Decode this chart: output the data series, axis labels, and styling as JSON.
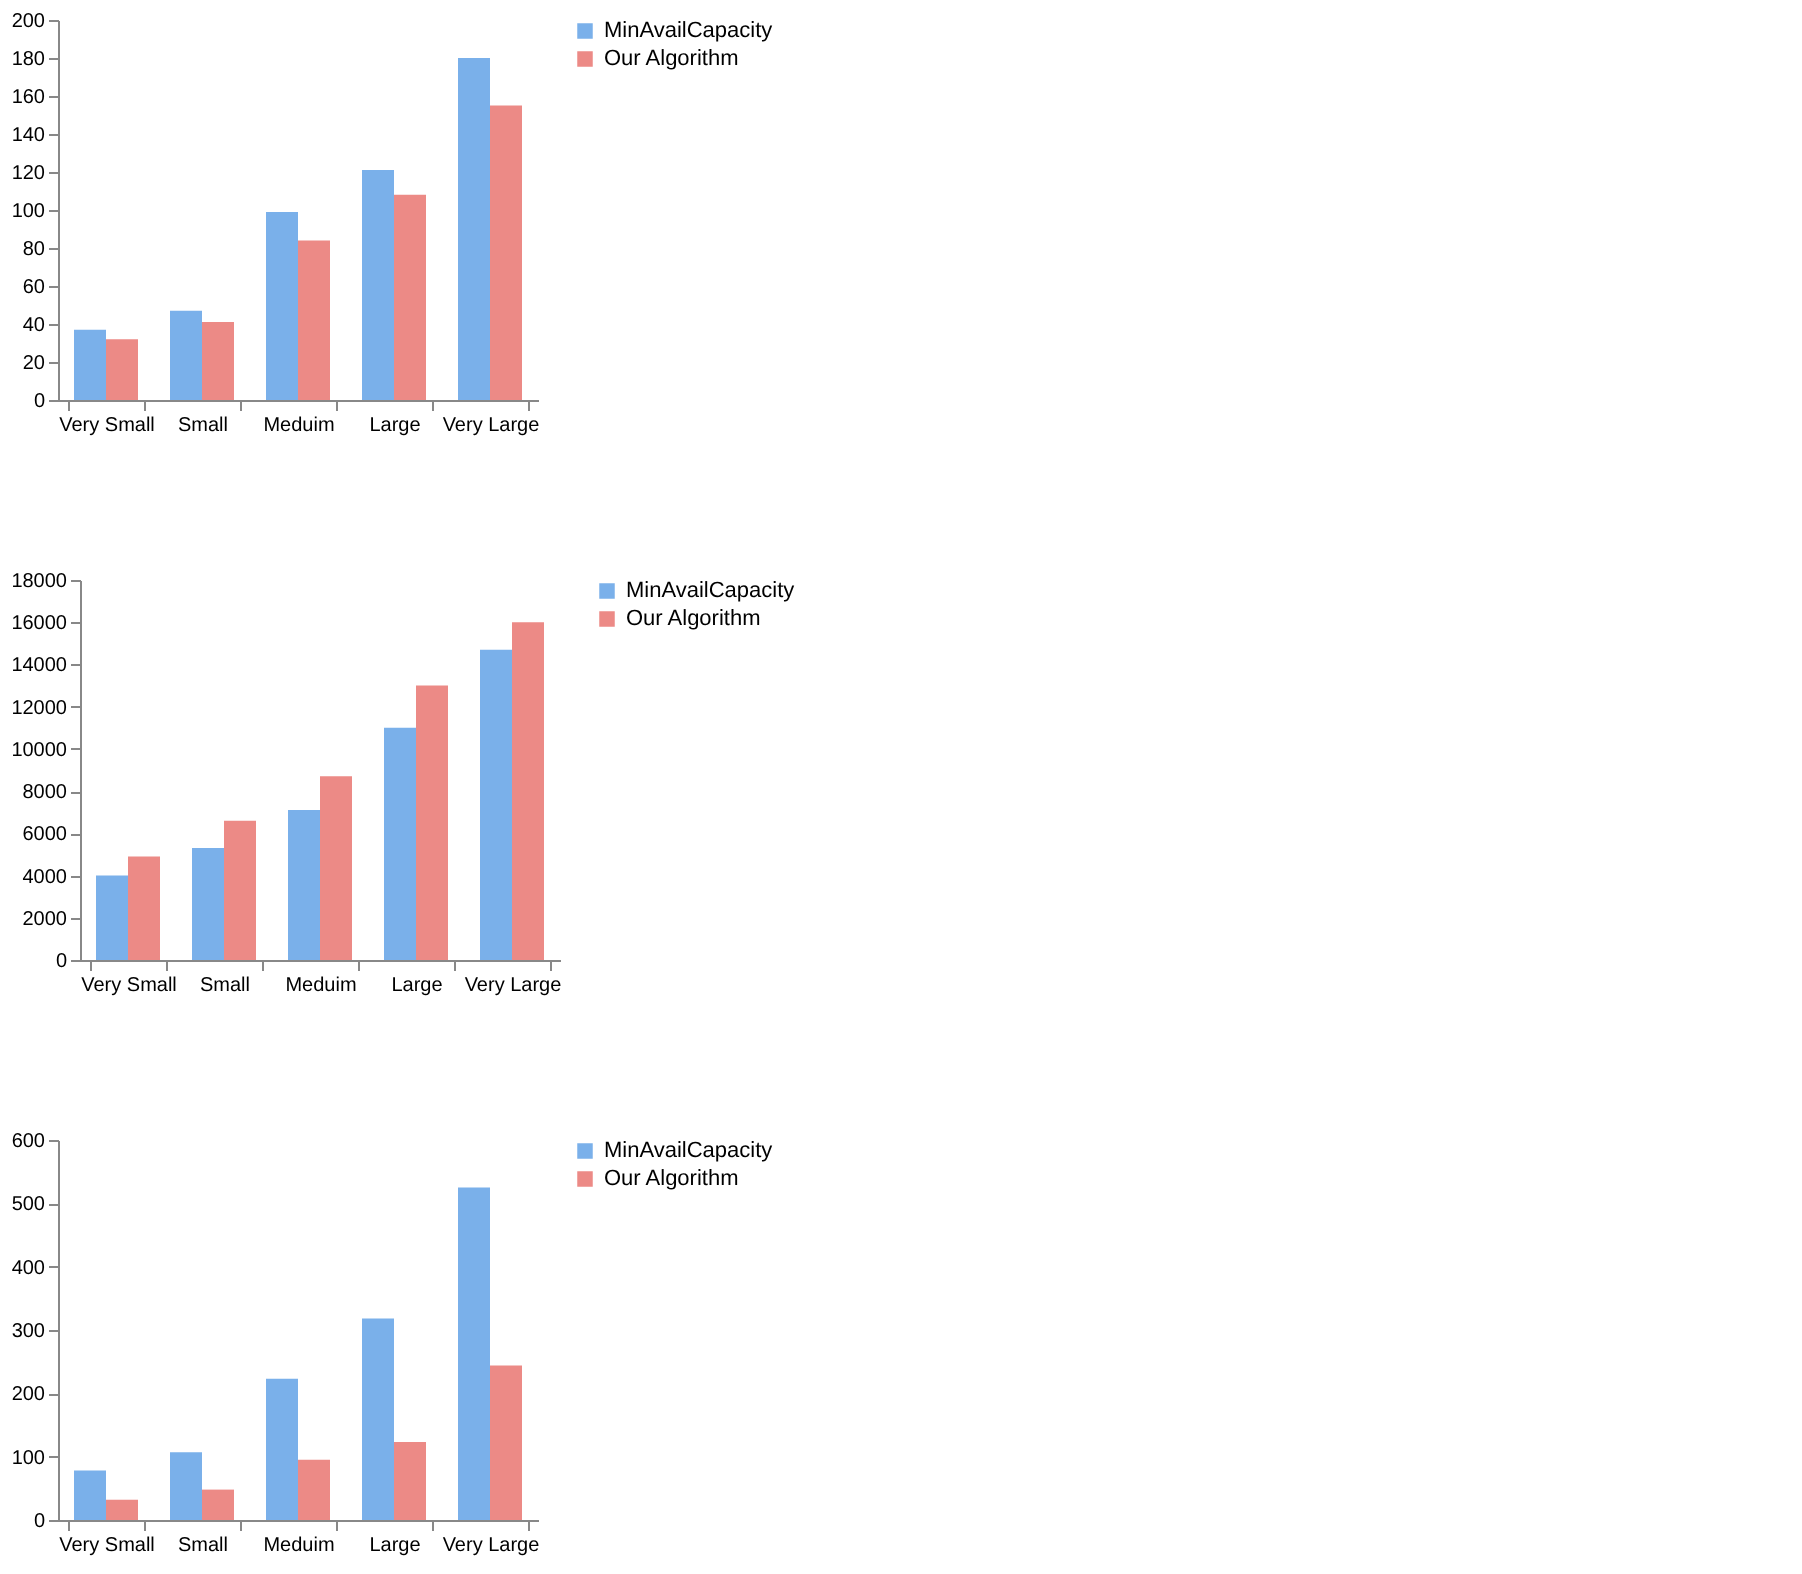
{
  "chart_data": [
    {
      "type": "bar",
      "categories": [
        "Very Small",
        "Small",
        "Meduim",
        "Large",
        "Very Large"
      ],
      "series": [
        {
          "name": "MinAvailCapacity",
          "color": "#7ab0ea",
          "values": [
            37,
            47,
            99,
            121,
            180
          ]
        },
        {
          "name": "Our Algorithm",
          "color": "#ec8a86",
          "values": [
            32,
            41,
            84,
            108,
            155
          ]
        }
      ],
      "ylim": [
        0,
        200
      ],
      "yticks": [
        0,
        20,
        40,
        60,
        80,
        100,
        120,
        140,
        160,
        180,
        200
      ],
      "grid": false,
      "legend": "right"
    },
    {
      "type": "bar",
      "categories": [
        "Very Small",
        "Small",
        "Meduim",
        "Large",
        "Very Large"
      ],
      "series": [
        {
          "name": "MinAvailCapacity",
          "color": "#7ab0ea",
          "values": [
            4000,
            5300,
            7100,
            11000,
            14700
          ]
        },
        {
          "name": "Our Algorithm",
          "color": "#ec8a86",
          "values": [
            4900,
            6600,
            8700,
            13000,
            16000
          ]
        }
      ],
      "ylim": [
        0,
        18000
      ],
      "yticks": [
        0,
        2000,
        4000,
        6000,
        8000,
        10000,
        12000,
        14000,
        16000,
        18000
      ],
      "grid": false,
      "legend": "right"
    },
    {
      "type": "bar",
      "categories": [
        "Very Small",
        "Small",
        "Meduim",
        "Large",
        "Very Large"
      ],
      "series": [
        {
          "name": "MinAvailCapacity",
          "color": "#7ab0ea",
          "values": [
            78,
            107,
            223,
            318,
            525
          ]
        },
        {
          "name": "Our Algorithm",
          "color": "#ec8a86",
          "values": [
            32,
            48,
            95,
            123,
            244
          ]
        }
      ],
      "ylim": [
        0,
        600
      ],
      "yticks": [
        0,
        100,
        200,
        300,
        400,
        500,
        600
      ],
      "grid": false,
      "legend": "right"
    }
  ]
}
